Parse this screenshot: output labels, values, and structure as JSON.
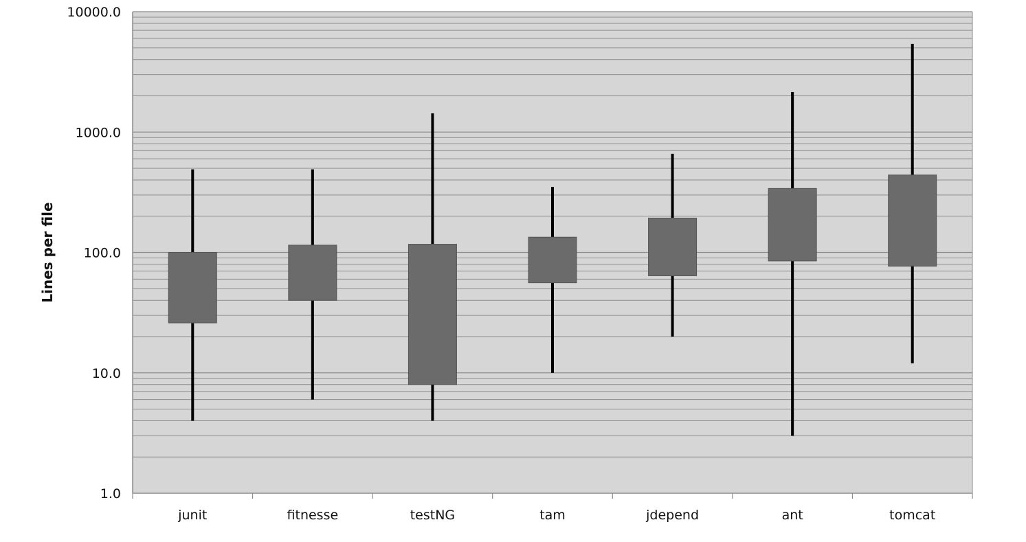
{
  "chart_data": {
    "type": "box",
    "title": "",
    "xlabel": "",
    "ylabel": "Lines per file",
    "yscale": "log",
    "ylim": [
      1,
      10000
    ],
    "ytick_labels": [
      "1.0",
      "10.0",
      "100.0",
      "1000.0",
      "10000.0"
    ],
    "ytick_values": [
      1,
      10,
      100,
      1000,
      10000
    ],
    "grid": "horizontal major and minor lines",
    "categories": [
      "junit",
      "fitnesse",
      "testNG",
      "tam",
      "jdepend",
      "ant",
      "tomcat"
    ],
    "series": [
      {
        "min": [
          4,
          6,
          4,
          10,
          20,
          3,
          12
        ],
        "q1": [
          26,
          40,
          8,
          56,
          64,
          85,
          77
        ],
        "q3": [
          100,
          115,
          117,
          134,
          193,
          340,
          440
        ],
        "max": [
          490,
          490,
          1430,
          350,
          660,
          2150,
          5400
        ]
      }
    ]
  },
  "colors": {
    "plot_background": "#d6d6d6",
    "gridline": "#8c8c8c",
    "box_fill": "#6b6b6b",
    "whisker": "#000000",
    "axis": "#8c8c8c"
  }
}
